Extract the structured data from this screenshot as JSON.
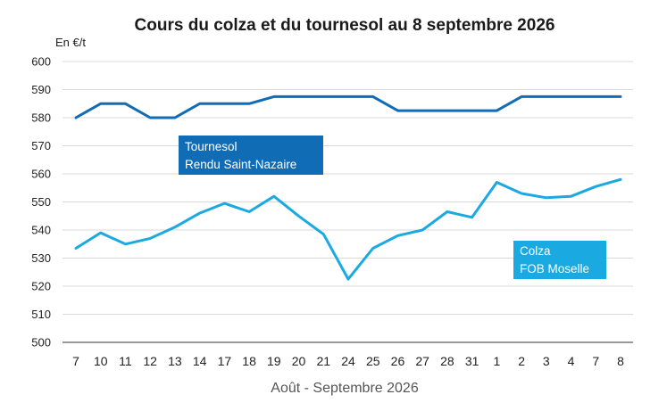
{
  "chart_data": {
    "type": "line",
    "title": "Cours du colza et du tournesol au 8 septembre 2026",
    "ylabel": "En €/t",
    "xlabel": "Août - Septembre 2026",
    "ylim": [
      500,
      600
    ],
    "yticks": [
      500,
      510,
      520,
      530,
      540,
      550,
      560,
      570,
      580,
      590,
      600
    ],
    "grid": true,
    "categories": [
      "7",
      "10",
      "11",
      "12",
      "13",
      "14",
      "17",
      "18",
      "19",
      "20",
      "21",
      "24",
      "25",
      "26",
      "27",
      "28",
      "31",
      "1",
      "2",
      "3",
      "4",
      "7",
      "8"
    ],
    "series": [
      {
        "name_lines": [
          "Tournesol",
          "Rendu Saint-Nazaire"
        ],
        "color": "#0f6cb5",
        "values": [
          580,
          585,
          585,
          580,
          580,
          585,
          585,
          585,
          587.5,
          587.5,
          587.5,
          587.5,
          587.5,
          582.5,
          582.5,
          582.5,
          582.5,
          582.5,
          587.5,
          587.5,
          587.5,
          587.5,
          587.5
        ]
      },
      {
        "name_lines": [
          "Colza",
          "FOB Moselle"
        ],
        "color": "#1ba9e1",
        "values": [
          533.5,
          539,
          535,
          537,
          541,
          546,
          549.5,
          546.5,
          552,
          545,
          538.5,
          522.5,
          533.5,
          538,
          540,
          546.5,
          544.5,
          557,
          553,
          551.5,
          552,
          555.5,
          558
        ]
      }
    ]
  }
}
